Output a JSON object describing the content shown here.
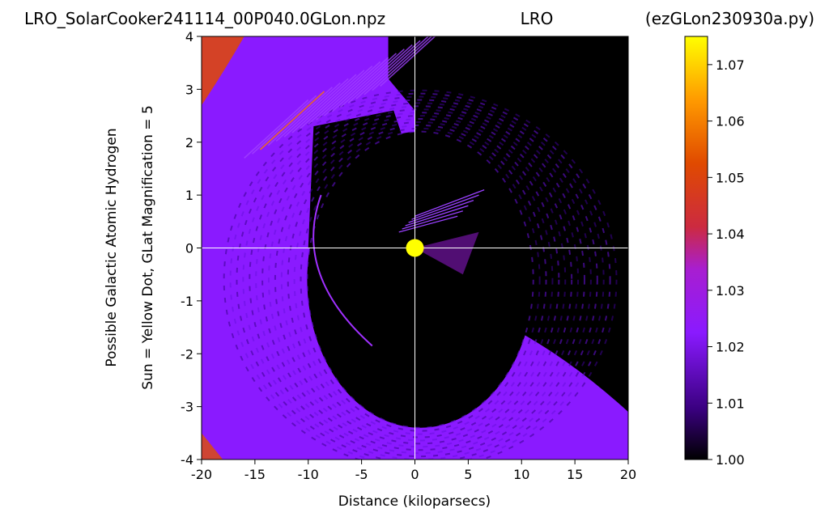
{
  "chart_data": {
    "type": "heatmap",
    "title_left": "LRO_SolarCooker241114_00P040.0GLon.npz",
    "title_center": "LRO",
    "title_right": "(ezGLon230930a.py)",
    "xlabel": "Distance (kiloparsecs)",
    "ylabel_line1": "Possible Galactic Atomic Hydrogen",
    "ylabel_line2": "Sun = Yellow Dot, GLat Magnification = 5",
    "xlim": [
      -20,
      20
    ],
    "ylim": [
      -4,
      4
    ],
    "x_ticks": [
      -20,
      -15,
      -10,
      -5,
      0,
      5,
      10,
      15,
      20
    ],
    "y_ticks": [
      -4,
      -3,
      -2,
      -1,
      0,
      1,
      2,
      3,
      4
    ],
    "grid": "crosshair at x=0 and y=0",
    "colormap": "gnuplot",
    "colorbar": {
      "range": [
        1.0,
        1.075
      ],
      "ticks": [
        "1.00",
        "1.01",
        "1.02",
        "1.03",
        "1.04",
        "1.05",
        "1.06",
        "1.07"
      ],
      "tick_values": [
        1.0,
        1.01,
        1.02,
        1.03,
        1.04,
        1.05,
        1.06,
        1.07
      ]
    },
    "sun": {
      "x": 0,
      "y": 0,
      "color": "#ffff00"
    },
    "colors": {
      "background": "#000000",
      "low": "#2a0060",
      "mid": "#8a1aff",
      "high": "#ff5a00",
      "peak": "#ffff00"
    }
  }
}
